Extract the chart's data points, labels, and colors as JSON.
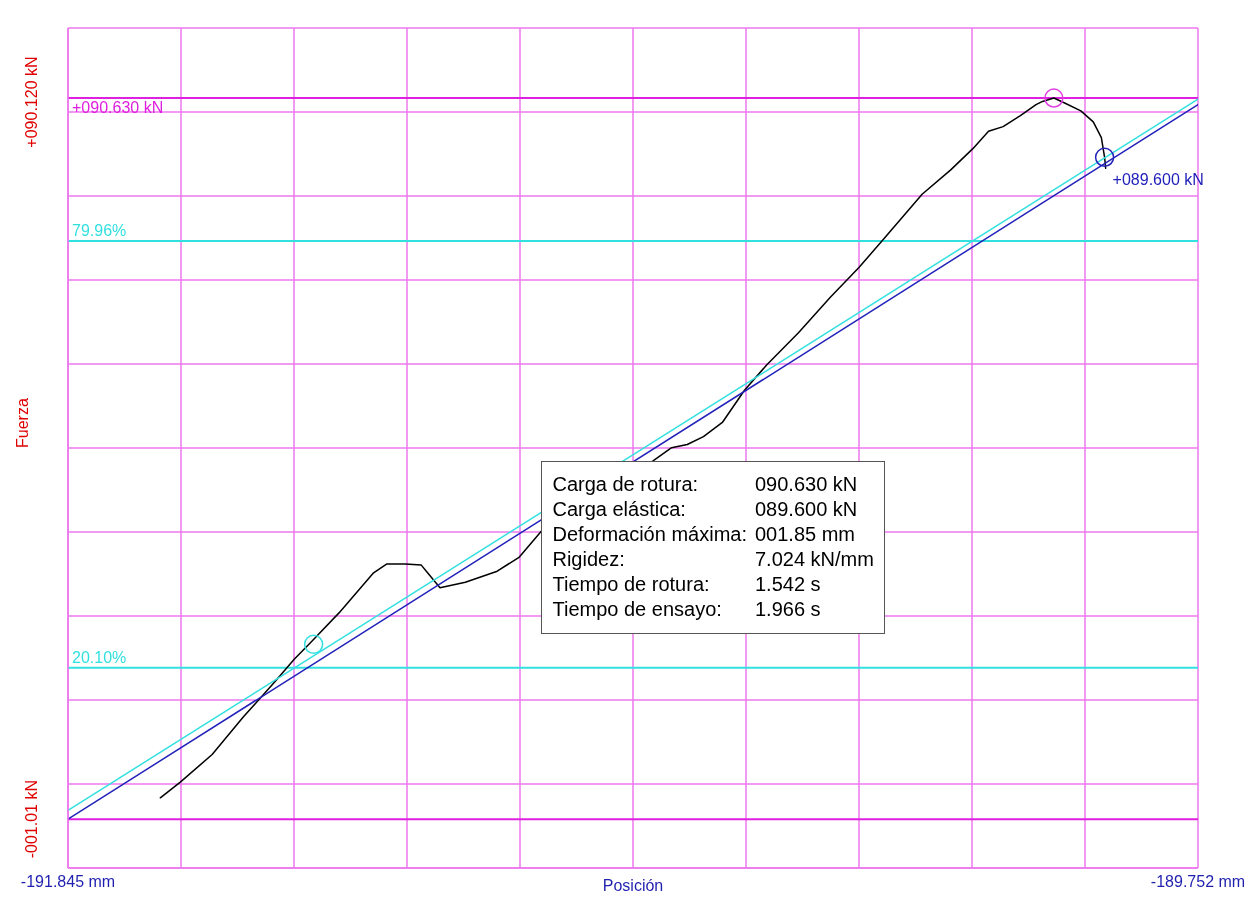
{
  "chart_data": {
    "type": "line",
    "xlabel": "Posición",
    "ylabel": "Fuerza",
    "xlim": [
      -191.845,
      -189.752
    ],
    "xticks": [
      {
        "value": -191.845,
        "label": "-191.845 mm"
      },
      {
        "value": -191.6357,
        "label": null
      },
      {
        "value": -191.4264,
        "label": null
      },
      {
        "value": -191.2171,
        "label": null
      },
      {
        "value": -191.0078,
        "label": null
      },
      {
        "value": -190.7985,
        "label": null
      },
      {
        "value": -190.5892,
        "label": null
      },
      {
        "value": -190.3799,
        "label": null
      },
      {
        "value": -190.1706,
        "label": null
      },
      {
        "value": -189.9613,
        "label": null
      },
      {
        "value": -189.752,
        "label": "-189.752 mm"
      }
    ],
    "ylim": [
      -7.22,
      99.53
    ],
    "yticks": [
      {
        "value": -7.22,
        "label": null
      },
      {
        "value": -1.01,
        "label": "-001.01 kN"
      },
      {
        "value": 3.46,
        "label": null
      },
      {
        "value": 14.13,
        "label": null
      },
      {
        "value": 24.81,
        "label": null
      },
      {
        "value": 35.48,
        "label": null
      },
      {
        "value": 46.16,
        "label": null
      },
      {
        "value": 56.83,
        "label": null
      },
      {
        "value": 67.51,
        "label": null
      },
      {
        "value": 78.18,
        "label": null
      },
      {
        "value": 88.86,
        "label": null
      },
      {
        "value": 90.12,
        "label": "+090.120 kN"
      },
      {
        "value": 99.53,
        "label": null
      }
    ],
    "grid": true,
    "series": [
      {
        "color": "#000000",
        "x": [
          -191.674,
          -191.637,
          -191.578,
          -191.52,
          -191.461,
          -191.426,
          -191.396,
          -191.343,
          -191.279,
          -191.255,
          -191.22,
          -191.191,
          -191.179,
          -191.156,
          -191.109,
          -191.05,
          -191.009,
          -190.968,
          -190.762,
          -190.727,
          -190.698,
          -190.668,
          -190.633,
          -190.592,
          -190.551,
          -190.492,
          -190.433,
          -190.38,
          -190.333,
          -190.263,
          -190.21,
          -190.169,
          -190.14,
          -190.113,
          -190.081,
          -190.052,
          -190.04,
          -190.019,
          -189.999,
          -189.969,
          -189.946,
          -189.931,
          -189.925,
          -189.923
        ],
        "values": [
          1.7,
          3.7,
          7.2,
          12.0,
          16.5,
          19.3,
          21.4,
          25.2,
          30.3,
          31.4,
          31.4,
          31.3,
          30.3,
          28.4,
          29.1,
          30.5,
          32.3,
          35.6,
          44.5,
          46.2,
          46.6,
          47.6,
          49.4,
          53.5,
          56.7,
          60.8,
          65.3,
          69.1,
          72.8,
          78.4,
          81.5,
          84.2,
          86.4,
          87.0,
          88.4,
          89.8,
          90.2,
          90.63,
          90.0,
          89.0,
          87.6,
          85.6,
          83.1,
          81.7
        ]
      },
      {
        "color": "#33e0e0",
        "x": [
          -191.845,
          -189.752
        ],
        "values": [
          0.1,
          90.5
        ]
      },
      {
        "color": "#2222bb",
        "x": [
          -191.845,
          -189.752
        ],
        "values": [
          -1.01,
          89.8
        ]
      },
      {
        "type": "scatter",
        "marker": "circle",
        "color": "#33e0e0",
        "x": [
          -191.39
        ],
        "values": [
          21.2
        ]
      },
      {
        "type": "scatter",
        "marker": "circle",
        "color": "#e040e0",
        "x": [
          -190.019
        ],
        "values": [
          90.63
        ]
      },
      {
        "type": "scatter",
        "marker": "circle",
        "color": "#2222bb",
        "x": [
          -189.925
        ],
        "values": [
          83.1
        ]
      }
    ],
    "ref_lines": [
      {
        "axis": "y",
        "value": 90.63,
        "label": "+090.630 kN",
        "color": "#e020e0"
      },
      {
        "axis": "y",
        "value": 72.47,
        "color": "#33e0e0"
      },
      {
        "axis": "y",
        "value": 18.22,
        "color": "#33e0e0"
      },
      {
        "axis": "y",
        "value": -1.01,
        "color": "#e020e0"
      }
    ],
    "annotations": [
      {
        "text": "+089.600 kN",
        "x": -189.925,
        "y": 83.1
      },
      {
        "text": "79.96%",
        "y": 72.47
      },
      {
        "text": "20.10%",
        "y": 18.22
      },
      "Carga de rotura:",
      "090.630 kN",
      "Carga elástica:",
      "089.600 kN",
      "Deformación máxima:",
      "001.85 mm",
      "Rigidez:",
      "7.024 kN/mm",
      "Tiempo de rotura:",
      "1.542 s",
      "Tiempo de ensayo:",
      "1.966 s"
    ]
  }
}
